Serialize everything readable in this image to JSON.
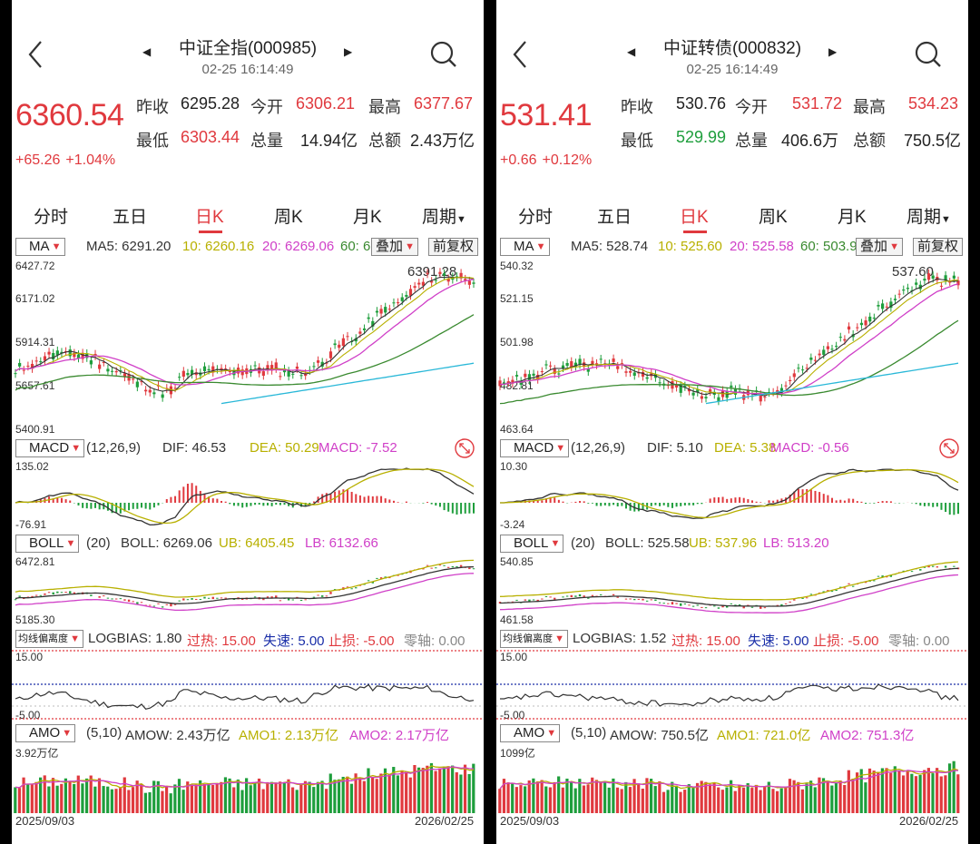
{
  "panels": [
    {
      "title": "中证全指(000985)",
      "time": "02-25 16:14:49",
      "price": "6360.54",
      "change": "+65.26",
      "change_pct": "+1.04%",
      "quote": {
        "prev_close_label": "昨收",
        "prev_close": "6295.28",
        "open_label": "今开",
        "open": "6306.21",
        "high_label": "最高",
        "high": "6377.67",
        "low_label": "最低",
        "low": "6303.44",
        "volume_label": "总量",
        "volume": "14.94亿",
        "amount_label": "总额",
        "amount": "2.43万亿"
      },
      "tabs": [
        "分时",
        "五日",
        "日K",
        "周K",
        "月K",
        "周期"
      ],
      "ma": {
        "selector": "MA",
        "ma5": "MA5: 6291.20",
        "ma10": "10: 6260.16",
        "ma20": "20: 6269.06",
        "ma60": "60: 6",
        "overlay": "叠加",
        "adjust": "前复权",
        "axis": [
          "6427.72",
          "6171.02",
          "5914.31",
          "5657.61",
          "5400.91"
        ],
        "peak_label": "6391.28"
      },
      "macd": {
        "selector": "MACD",
        "params": "(12,26,9)",
        "dif": "DIF: 46.53",
        "dea": "DEA: 50.29",
        "macd": "MACD: -7.52",
        "axis": [
          "135.02",
          "-76.91"
        ]
      },
      "boll": {
        "selector": "BOLL",
        "params": "(20)",
        "boll": "BOLL: 6269.06",
        "ub": "UB: 6405.45",
        "lb": "LB: 6132.66",
        "axis": [
          "6472.81",
          "5185.30"
        ]
      },
      "bias": {
        "selector": "均线偏离度",
        "logbias": "LOGBIAS: 1.80",
        "hot": "过热: 15.00",
        "speed": "失速: 5.00",
        "stop": "止损: -5.00",
        "zero": "零轴: 0.00",
        "axis": [
          "15.00",
          "-5.00"
        ]
      },
      "amo": {
        "selector": "AMO",
        "params": "(5,10)",
        "amow": "AMOW: 2.43万亿",
        "amo1": "AMO1: 2.13万亿",
        "amo2": "AMO2: 2.17万亿",
        "axis": "3.92万亿"
      },
      "date_start": "2025/09/03",
      "date_end": "2026/02/25"
    },
    {
      "title": "中证转债(000832)",
      "time": "02-25 16:14:49",
      "price": "531.41",
      "change": "+0.66",
      "change_pct": "+0.12%",
      "quote": {
        "prev_close_label": "昨收",
        "prev_close": "530.76",
        "open_label": "今开",
        "open": "531.72",
        "high_label": "最高",
        "high": "534.23",
        "low_label": "最低",
        "low": "529.99",
        "volume_label": "总量",
        "volume": "406.6万",
        "amount_label": "总额",
        "amount": "750.5亿"
      },
      "tabs": [
        "分时",
        "五日",
        "日K",
        "周K",
        "月K",
        "周期"
      ],
      "ma": {
        "selector": "MA",
        "ma5": "MA5: 528.74",
        "ma10": "10: 525.60",
        "ma20": "20: 525.58",
        "ma60": "60: 503.9",
        "overlay": "叠加",
        "adjust": "前复权",
        "axis": [
          "540.32",
          "521.15",
          "501.98",
          "482.81",
          "463.64"
        ],
        "peak_label": "537.60"
      },
      "macd": {
        "selector": "MACD",
        "params": "(12,26,9)",
        "dif": "DIF: 5.10",
        "dea": "DEA: 5.38",
        "macd": "MACD: -0.56",
        "axis": [
          "10.30",
          "-3.24"
        ]
      },
      "boll": {
        "selector": "BOLL",
        "params": "(20)",
        "boll": "BOLL: 525.58",
        "ub": "UB: 537.96",
        "lb": "LB: 513.20",
        "axis": [
          "540.85",
          "461.58"
        ]
      },
      "bias": {
        "selector": "均线偏离度",
        "logbias": "LOGBIAS: 1.52",
        "hot": "过热: 15.00",
        "speed": "失速: 5.00",
        "stop": "止损: -5.00",
        "zero": "零轴: 0.00",
        "axis": [
          "15.00",
          "-5.00"
        ]
      },
      "amo": {
        "selector": "AMO",
        "params": "(5,10)",
        "amow": "AMOW: 750.5亿",
        "amo1": "AMO1: 721.0亿",
        "amo2": "AMO2: 751.3亿",
        "axis": "1099亿"
      },
      "date_start": "2025/09/03",
      "date_end": "2026/02/25"
    }
  ],
  "colors": {
    "up": "#e0393e",
    "down": "#1e9e3c",
    "ma5": "#333333",
    "ma10": "#b8b000",
    "ma20": "#d040c8",
    "ma60": "#3a8a30",
    "ma120": "#2ab8d8"
  }
}
